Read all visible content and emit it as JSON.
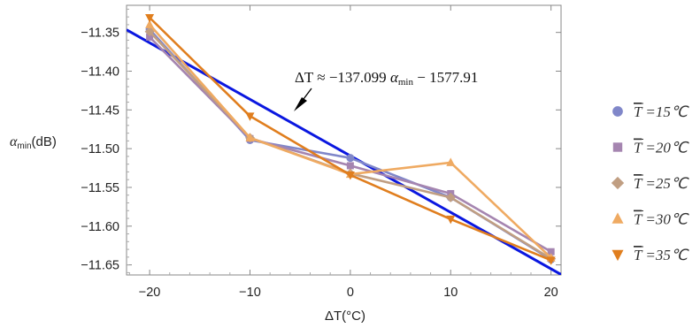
{
  "chart_data": {
    "type": "line",
    "xlabel": "ΔT(°C)",
    "ylabel": {
      "prefix": "α",
      "sub": "min",
      "suffix": "(dB)"
    },
    "xlim": [
      -22.3,
      21.0
    ],
    "ylim": [
      -11.663,
      -11.315
    ],
    "xticks": [
      -20,
      -10,
      0,
      10,
      20
    ],
    "xtick_labels": [
      "−20",
      "−10",
      "0",
      "10",
      "20"
    ],
    "yticks": [
      -11.35,
      -11.4,
      -11.45,
      -11.5,
      -11.55,
      -11.6,
      -11.65
    ],
    "ytick_labels": [
      "−11.35",
      "−11.40",
      "−11.45",
      "−11.50",
      "−11.55",
      "−11.60",
      "−11.65"
    ],
    "grid": false,
    "legend_position": "right",
    "series": [
      {
        "name": "T̅ =15℃",
        "legend_T": "T",
        "legend_rest": " =15℃",
        "color": "#8087c9",
        "marker": "circle",
        "x": [
          -20,
          -10,
          0,
          10,
          20
        ],
        "y": [
          -11.346,
          -11.489,
          -11.512,
          -11.563,
          -11.643
        ]
      },
      {
        "name": "T̅ =20℃",
        "legend_T": "T",
        "legend_rest": " =20℃",
        "color": "#a585b0",
        "marker": "square",
        "x": [
          -20,
          -10,
          0,
          10,
          20
        ],
        "y": [
          -11.356,
          -11.487,
          -11.522,
          -11.558,
          -11.633
        ]
      },
      {
        "name": "T̅ =25℃",
        "legend_T": "T",
        "legend_rest": " =25℃",
        "color": "#c09e82",
        "marker": "diamond",
        "x": [
          -20,
          -10,
          0,
          10,
          20
        ],
        "y": [
          -11.349,
          -11.486,
          -11.532,
          -11.563,
          -11.642
        ]
      },
      {
        "name": "T̅ =30℃",
        "legend_T": "T",
        "legend_rest": " =30℃",
        "color": "#efaa62",
        "marker": "triangle-up",
        "x": [
          -20,
          -10,
          0,
          10,
          20
        ],
        "y": [
          -11.34,
          -11.486,
          -11.533,
          -11.518,
          -11.641
        ]
      },
      {
        "name": "T̅ =35℃",
        "legend_T": "T",
        "legend_rest": " =35℃",
        "color": "#e07e1e",
        "marker": "triangle-down",
        "x": [
          -20,
          -10,
          0,
          10,
          20
        ],
        "y": [
          -11.331,
          -11.458,
          -11.534,
          -11.591,
          -11.644
        ]
      }
    ],
    "fit_line": {
      "color": "#0a17e0",
      "slope": -137.099,
      "intercept": -1577.91,
      "equation": {
        "lhs": "ΔT ≈ −137.099 ",
        "alpha": "α",
        "sub": "min",
        "rhs": " − 1577.91"
      }
    },
    "annotation": {
      "type": "arrow",
      "target_x": -5.5,
      "target_y": -11.477
    }
  }
}
